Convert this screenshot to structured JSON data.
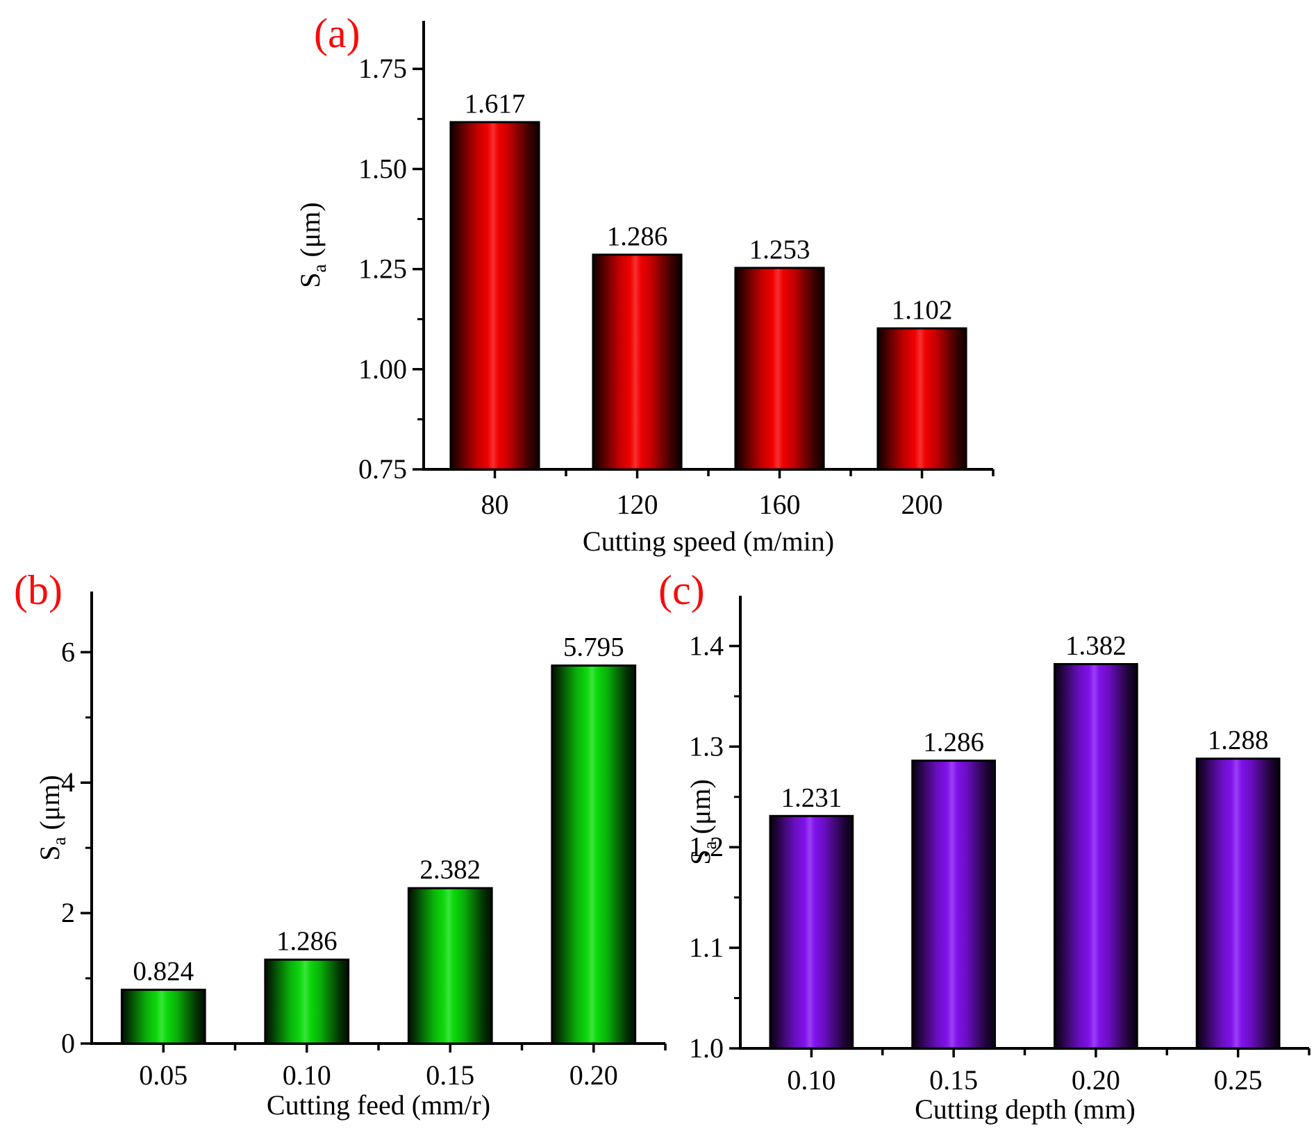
{
  "figure_background": "#ffffff",
  "accent_label_color": "#fa0a0a",
  "panels": [
    {
      "label": "(a)"
    },
    {
      "label": "(b)"
    },
    {
      "label": "(c)"
    }
  ],
  "chart_data": [
    {
      "type": "bar",
      "panel": "(a)",
      "categories": [
        "80",
        "120",
        "160",
        "200"
      ],
      "values": [
        1.617,
        1.286,
        1.253,
        1.102
      ],
      "bar_labels": [
        "1.617",
        "1.286",
        "1.253",
        "1.102"
      ],
      "xlabel": "Cutting speed (m/min)",
      "ylabel_main": "S",
      "ylabel_sub": "a",
      "ylabel_unit": "(μm)",
      "ylim": [
        0.75,
        1.87
      ],
      "yticks": [
        0.75,
        1.0,
        1.25,
        1.5,
        1.75
      ],
      "ytick_labels": [
        "0.75",
        "1.00",
        "1.25",
        "1.50",
        "1.75"
      ],
      "minor_tick_step": 0.125,
      "bar_color": "#f50000",
      "bar_edge_color": "#000000",
      "grid": false,
      "legend": "none"
    },
    {
      "type": "bar",
      "panel": "(b)",
      "categories": [
        "0.05",
        "0.10",
        "0.15",
        "0.20"
      ],
      "values": [
        0.824,
        1.286,
        2.382,
        5.795
      ],
      "bar_labels": [
        "0.824",
        "1.286",
        "2.382",
        "5.795"
      ],
      "xlabel": "Cutting feed (mm/r)",
      "ylabel_main": "S",
      "ylabel_sub": "a",
      "ylabel_unit": "(μm)",
      "ylim": [
        0,
        6.93
      ],
      "yticks": [
        0,
        2,
        4,
        6
      ],
      "ytick_labels": [
        "0",
        "2",
        "4",
        "6"
      ],
      "minor_tick_step": 1,
      "bar_color": "#0cdd0c",
      "bar_edge_color": "#000000",
      "grid": false,
      "legend": "none"
    },
    {
      "type": "bar",
      "panel": "(c)",
      "categories": [
        "0.10",
        "0.15",
        "0.20",
        "0.25"
      ],
      "values": [
        1.231,
        1.286,
        1.382,
        1.288
      ],
      "bar_labels": [
        "1.231",
        "1.286",
        "1.382",
        "1.288"
      ],
      "xlabel": "Cutting depth (mm)",
      "ylabel_main": "S",
      "ylabel_sub": "a",
      "ylabel_unit": "(μm)",
      "ylim": [
        1.0,
        1.45
      ],
      "yticks": [
        1.0,
        1.1,
        1.2,
        1.3,
        1.4
      ],
      "ytick_labels": [
        "1.0",
        "1.1",
        "1.2",
        "1.3",
        "1.4"
      ],
      "minor_tick_step": 0.05,
      "bar_color": "#8312f0",
      "bar_edge_color": "#000000",
      "grid": false,
      "legend": "none"
    }
  ]
}
